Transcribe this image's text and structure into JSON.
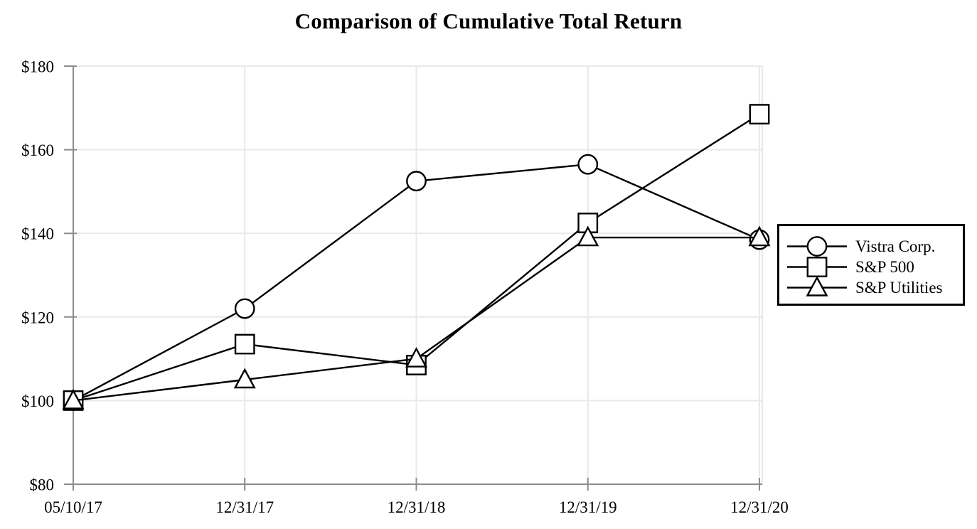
{
  "chart_data": {
    "type": "line",
    "title": "Comparison of Cumulative Total Return",
    "categories": [
      "05/10/17",
      "12/31/17",
      "12/31/18",
      "12/31/19",
      "12/31/20"
    ],
    "series": [
      {
        "name": "Vistra Corp.",
        "marker": "circle",
        "values": [
          100,
          122,
          152.5,
          156.5,
          138.5
        ]
      },
      {
        "name": "S&P 500",
        "marker": "square",
        "values": [
          100,
          113.5,
          108.5,
          142.5,
          168.5
        ]
      },
      {
        "name": "S&P Utilities",
        "marker": "triangle",
        "values": [
          100,
          105,
          110,
          139,
          139
        ]
      }
    ],
    "ylim": [
      80,
      180
    ],
    "ytick_step": 20,
    "ytick_labels": [
      "$80",
      "$100",
      "$120",
      "$140",
      "$160",
      "$180"
    ],
    "grid": true,
    "legend_position": "right",
    "colors": {
      "line": "#000000",
      "axis": "#8c8c8c",
      "grid": "#e9e9e9",
      "marker_fill": "#ffffff",
      "text": "#000000",
      "legend_border": "#000000"
    }
  }
}
